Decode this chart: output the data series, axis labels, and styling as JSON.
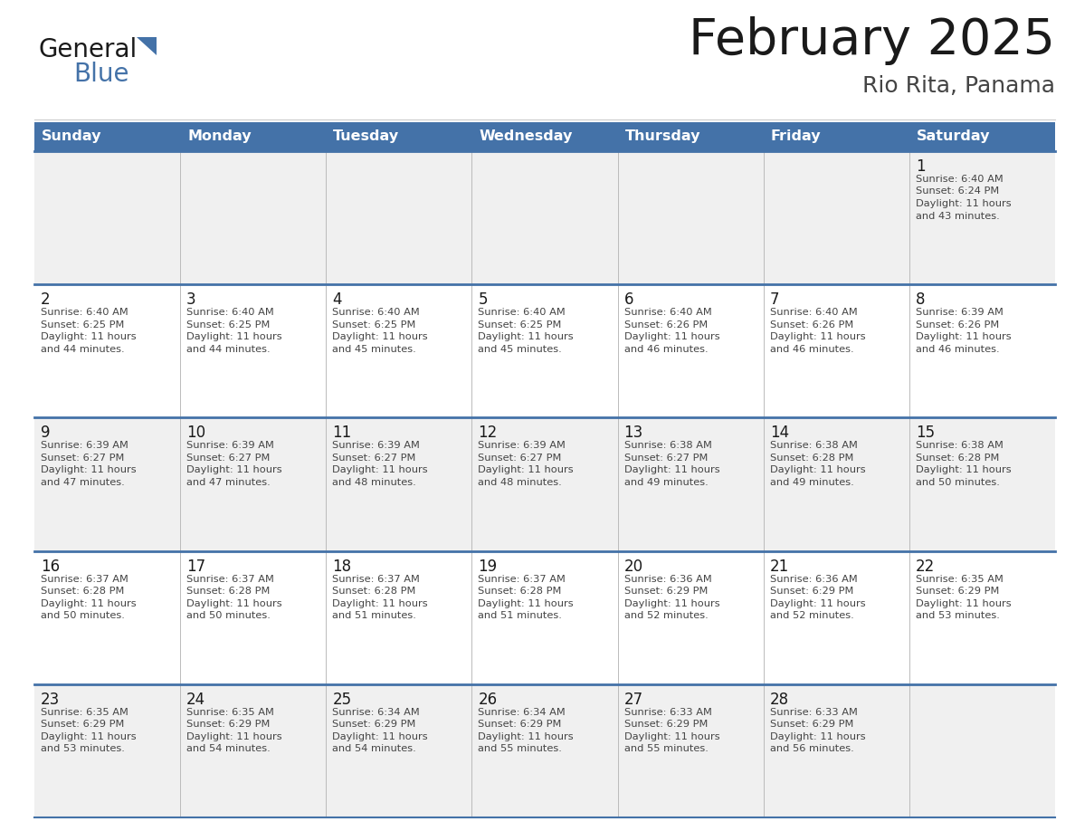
{
  "title": "February 2025",
  "subtitle": "Rio Rita, Panama",
  "days_of_week": [
    "Sunday",
    "Monday",
    "Tuesday",
    "Wednesday",
    "Thursday",
    "Friday",
    "Saturday"
  ],
  "header_bg": "#4472a8",
  "header_text": "#ffffff",
  "row_bg_light": "#f0f0f0",
  "row_bg_white": "#ffffff",
  "border_color": "#4472a8",
  "day_number_color": "#1a1a1a",
  "text_color": "#444444",
  "logo_black": "#1a1a1a",
  "logo_blue": "#4472a8",
  "calendar": [
    [
      null,
      null,
      null,
      null,
      null,
      null,
      {
        "day": 1,
        "sunrise": "6:40 AM",
        "sunset": "6:24 PM",
        "daylight": "11 hours and 43 minutes."
      }
    ],
    [
      {
        "day": 2,
        "sunrise": "6:40 AM",
        "sunset": "6:25 PM",
        "daylight": "11 hours and 44 minutes."
      },
      {
        "day": 3,
        "sunrise": "6:40 AM",
        "sunset": "6:25 PM",
        "daylight": "11 hours and 44 minutes."
      },
      {
        "day": 4,
        "sunrise": "6:40 AM",
        "sunset": "6:25 PM",
        "daylight": "11 hours and 45 minutes."
      },
      {
        "day": 5,
        "sunrise": "6:40 AM",
        "sunset": "6:25 PM",
        "daylight": "11 hours and 45 minutes."
      },
      {
        "day": 6,
        "sunrise": "6:40 AM",
        "sunset": "6:26 PM",
        "daylight": "11 hours and 46 minutes."
      },
      {
        "day": 7,
        "sunrise": "6:40 AM",
        "sunset": "6:26 PM",
        "daylight": "11 hours and 46 minutes."
      },
      {
        "day": 8,
        "sunrise": "6:39 AM",
        "sunset": "6:26 PM",
        "daylight": "11 hours and 46 minutes."
      }
    ],
    [
      {
        "day": 9,
        "sunrise": "6:39 AM",
        "sunset": "6:27 PM",
        "daylight": "11 hours and 47 minutes."
      },
      {
        "day": 10,
        "sunrise": "6:39 AM",
        "sunset": "6:27 PM",
        "daylight": "11 hours and 47 minutes."
      },
      {
        "day": 11,
        "sunrise": "6:39 AM",
        "sunset": "6:27 PM",
        "daylight": "11 hours and 48 minutes."
      },
      {
        "day": 12,
        "sunrise": "6:39 AM",
        "sunset": "6:27 PM",
        "daylight": "11 hours and 48 minutes."
      },
      {
        "day": 13,
        "sunrise": "6:38 AM",
        "sunset": "6:27 PM",
        "daylight": "11 hours and 49 minutes."
      },
      {
        "day": 14,
        "sunrise": "6:38 AM",
        "sunset": "6:28 PM",
        "daylight": "11 hours and 49 minutes."
      },
      {
        "day": 15,
        "sunrise": "6:38 AM",
        "sunset": "6:28 PM",
        "daylight": "11 hours and 50 minutes."
      }
    ],
    [
      {
        "day": 16,
        "sunrise": "6:37 AM",
        "sunset": "6:28 PM",
        "daylight": "11 hours and 50 minutes."
      },
      {
        "day": 17,
        "sunrise": "6:37 AM",
        "sunset": "6:28 PM",
        "daylight": "11 hours and 50 minutes."
      },
      {
        "day": 18,
        "sunrise": "6:37 AM",
        "sunset": "6:28 PM",
        "daylight": "11 hours and 51 minutes."
      },
      {
        "day": 19,
        "sunrise": "6:37 AM",
        "sunset": "6:28 PM",
        "daylight": "11 hours and 51 minutes."
      },
      {
        "day": 20,
        "sunrise": "6:36 AM",
        "sunset": "6:29 PM",
        "daylight": "11 hours and 52 minutes."
      },
      {
        "day": 21,
        "sunrise": "6:36 AM",
        "sunset": "6:29 PM",
        "daylight": "11 hours and 52 minutes."
      },
      {
        "day": 22,
        "sunrise": "6:35 AM",
        "sunset": "6:29 PM",
        "daylight": "11 hours and 53 minutes."
      }
    ],
    [
      {
        "day": 23,
        "sunrise": "6:35 AM",
        "sunset": "6:29 PM",
        "daylight": "11 hours and 53 minutes."
      },
      {
        "day": 24,
        "sunrise": "6:35 AM",
        "sunset": "6:29 PM",
        "daylight": "11 hours and 54 minutes."
      },
      {
        "day": 25,
        "sunrise": "6:34 AM",
        "sunset": "6:29 PM",
        "daylight": "11 hours and 54 minutes."
      },
      {
        "day": 26,
        "sunrise": "6:34 AM",
        "sunset": "6:29 PM",
        "daylight": "11 hours and 55 minutes."
      },
      {
        "day": 27,
        "sunrise": "6:33 AM",
        "sunset": "6:29 PM",
        "daylight": "11 hours and 55 minutes."
      },
      {
        "day": 28,
        "sunrise": "6:33 AM",
        "sunset": "6:29 PM",
        "daylight": "11 hours and 56 minutes."
      },
      null
    ]
  ]
}
